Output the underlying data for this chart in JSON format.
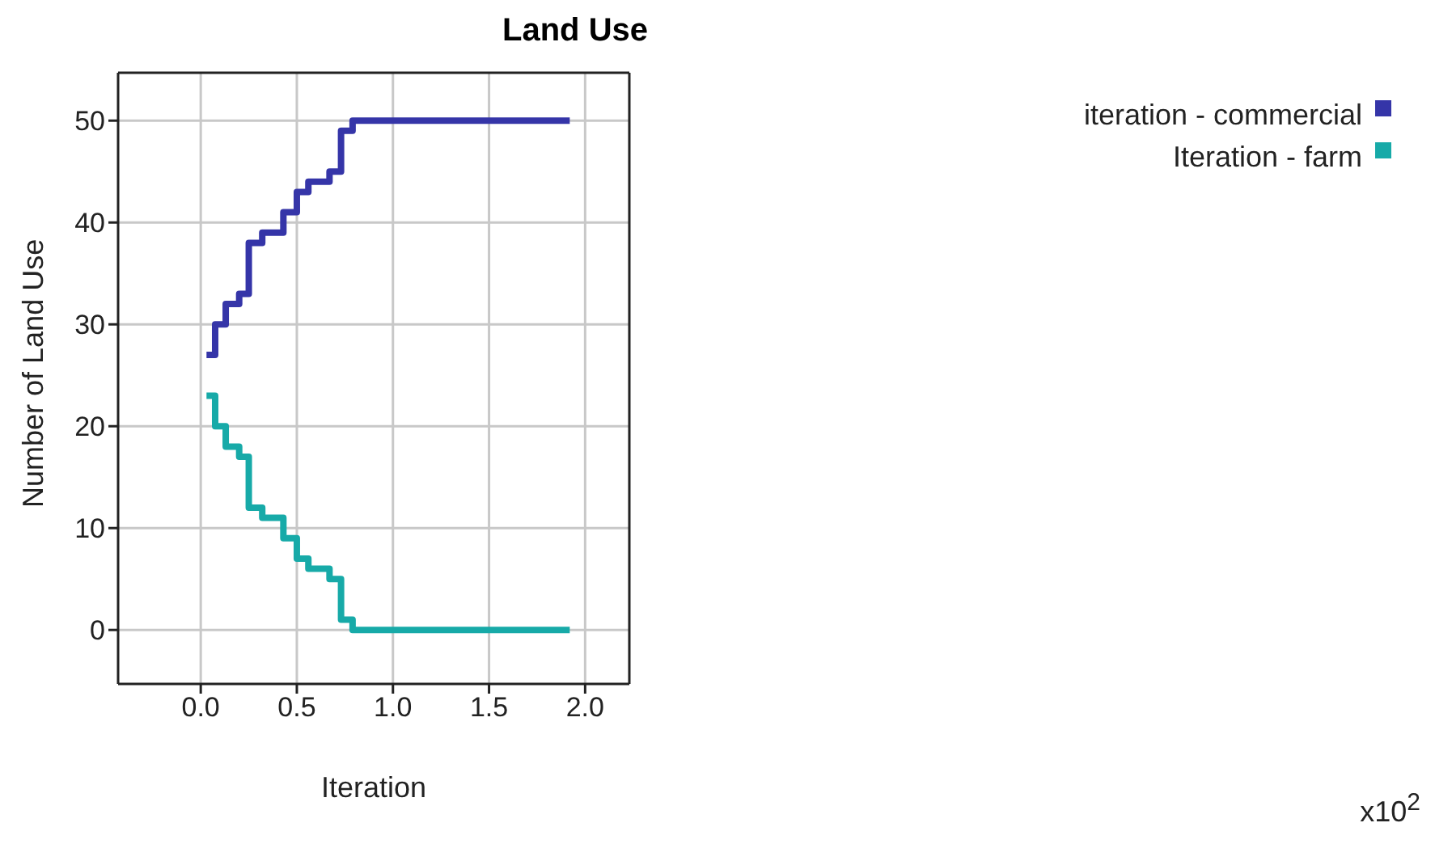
{
  "chart_data": {
    "type": "step",
    "title": "Land Use",
    "xlabel": "Iteration",
    "ylabel": "Number of Land Use",
    "annotations": [
      "x10$^{2}$"
    ],
    "x": [
      0.03,
      0.075,
      0.13,
      0.2,
      0.25,
      0.32,
      0.43,
      0.5,
      0.56,
      0.67,
      0.73,
      0.79,
      1.92
    ],
    "series": [
      {
        "name": "iteration - commercial",
        "color": "#3535a8",
        "values": [
          27,
          30,
          32,
          33,
          38,
          39,
          41,
          43,
          44,
          45,
          49,
          50,
          50
        ]
      },
      {
        "name": "Iteration - farm",
        "color": "#17aaa8",
        "values": [
          23,
          20,
          18,
          17,
          12,
          11,
          9,
          7,
          6,
          5,
          1,
          0,
          0
        ]
      }
    ],
    "xlim": [
      -0.43,
      2.23
    ],
    "xticks": [
      {
        "value": 0,
        "label": "0.0"
      },
      0.5,
      {
        "value": 1,
        "label": "1.0"
      },
      1.5,
      {
        "value": 2,
        "label": "2.0"
      }
    ],
    "ylim": [
      -5.3,
      54.7
    ],
    "yticks": [
      0,
      10,
      20,
      30,
      40,
      50
    ],
    "grid": true,
    "legend": "top right",
    "marker": "none",
    "line_style": "solid"
  }
}
